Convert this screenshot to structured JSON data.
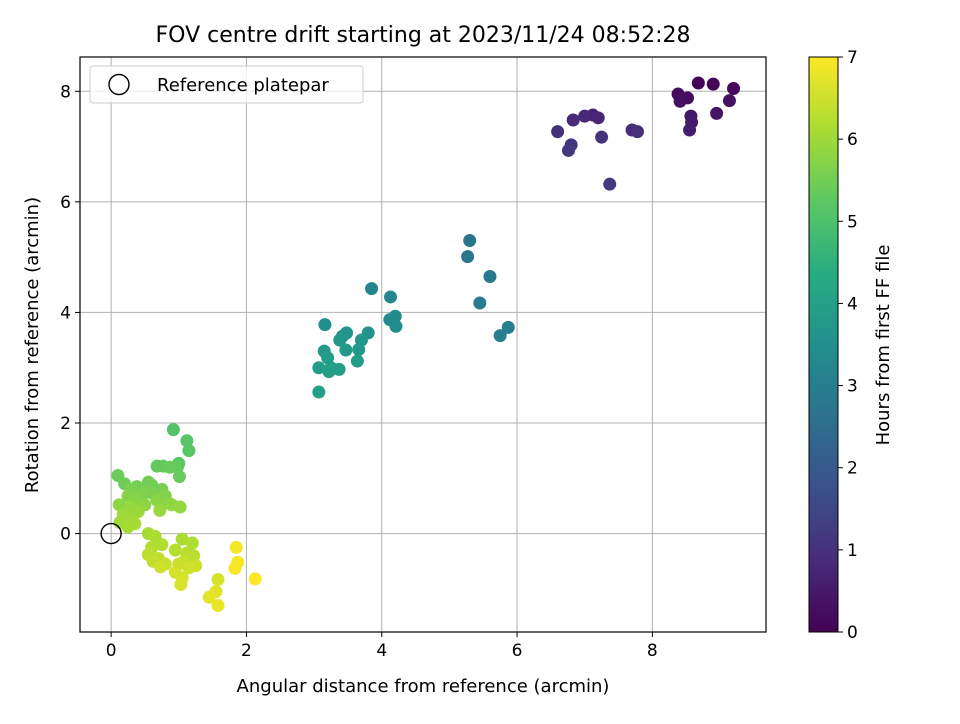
{
  "chart_data": {
    "type": "scatter",
    "title": "FOV centre drift starting at 2023/11/24 08:52:28",
    "xlabel": "Angular distance from reference (arcmin)",
    "ylabel": "Rotation from reference (arcmin)",
    "xlim": [
      -0.46,
      9.68
    ],
    "ylim": [
      -1.78,
      8.62
    ],
    "xticks": [
      0,
      2,
      4,
      6,
      8
    ],
    "yticks": [
      0,
      2,
      4,
      6,
      8
    ],
    "grid": true,
    "legend": {
      "placement": "top-left",
      "entries": [
        "Reference platepar"
      ]
    },
    "reference_point": {
      "x": 0,
      "y": 0,
      "label": "Reference platepar"
    },
    "colorbar": {
      "label": "Hours from first FF file",
      "range": [
        0,
        7
      ],
      "ticks": [
        0,
        1,
        2,
        3,
        4,
        5,
        6,
        7
      ],
      "colormap": "viridis"
    },
    "series": [
      {
        "points": [
          {
            "x": 8.68,
            "y": 8.15,
            "c": 0.05
          },
          {
            "x": 8.9,
            "y": 8.13,
            "c": 0.1
          },
          {
            "x": 9.2,
            "y": 8.05,
            "c": 0.15
          },
          {
            "x": 8.38,
            "y": 7.95,
            "c": 0.2
          },
          {
            "x": 8.52,
            "y": 7.88,
            "c": 0.25
          },
          {
            "x": 8.41,
            "y": 7.82,
            "c": 0.3
          },
          {
            "x": 9.14,
            "y": 7.83,
            "c": 0.35
          },
          {
            "x": 8.95,
            "y": 7.6,
            "c": 0.4
          },
          {
            "x": 8.57,
            "y": 7.55,
            "c": 0.45
          },
          {
            "x": 8.58,
            "y": 7.44,
            "c": 0.5
          },
          {
            "x": 8.55,
            "y": 7.3,
            "c": 0.55
          },
          {
            "x": 7.12,
            "y": 7.57,
            "c": 0.7
          },
          {
            "x": 7.2,
            "y": 7.52,
            "c": 0.75
          },
          {
            "x": 7.0,
            "y": 7.55,
            "c": 0.8
          },
          {
            "x": 6.83,
            "y": 7.48,
            "c": 0.85
          },
          {
            "x": 7.7,
            "y": 7.3,
            "c": 0.9
          },
          {
            "x": 7.78,
            "y": 7.27,
            "c": 0.95
          },
          {
            "x": 6.6,
            "y": 7.27,
            "c": 1.0
          },
          {
            "x": 7.25,
            "y": 7.17,
            "c": 1.05
          },
          {
            "x": 6.8,
            "y": 7.03,
            "c": 1.1
          },
          {
            "x": 6.76,
            "y": 6.93,
            "c": 1.15
          },
          {
            "x": 7.37,
            "y": 6.32,
            "c": 1.2
          },
          {
            "x": 5.3,
            "y": 5.3,
            "c": 2.75
          },
          {
            "x": 5.27,
            "y": 5.01,
            "c": 2.8
          },
          {
            "x": 5.6,
            "y": 4.65,
            "c": 2.85
          },
          {
            "x": 5.45,
            "y": 4.17,
            "c": 2.9
          },
          {
            "x": 5.87,
            "y": 3.73,
            "c": 2.95
          },
          {
            "x": 5.75,
            "y": 3.58,
            "c": 3.0
          },
          {
            "x": 3.85,
            "y": 4.43,
            "c": 3.2
          },
          {
            "x": 4.13,
            "y": 4.28,
            "c": 3.25
          },
          {
            "x": 4.2,
            "y": 3.93,
            "c": 3.3
          },
          {
            "x": 4.12,
            "y": 3.87,
            "c": 3.35
          },
          {
            "x": 4.21,
            "y": 3.75,
            "c": 3.4
          },
          {
            "x": 3.16,
            "y": 3.78,
            "c": 3.5
          },
          {
            "x": 3.8,
            "y": 3.63,
            "c": 3.55
          },
          {
            "x": 3.48,
            "y": 3.63,
            "c": 3.6
          },
          {
            "x": 3.42,
            "y": 3.57,
            "c": 3.65
          },
          {
            "x": 3.7,
            "y": 3.5,
            "c": 3.7
          },
          {
            "x": 3.38,
            "y": 3.5,
            "c": 3.72
          },
          {
            "x": 3.66,
            "y": 3.33,
            "c": 3.75
          },
          {
            "x": 3.47,
            "y": 3.32,
            "c": 3.78
          },
          {
            "x": 3.15,
            "y": 3.3,
            "c": 3.8
          },
          {
            "x": 3.2,
            "y": 3.18,
            "c": 3.82
          },
          {
            "x": 3.64,
            "y": 3.12,
            "c": 3.85
          },
          {
            "x": 3.07,
            "y": 3.0,
            "c": 3.88
          },
          {
            "x": 3.25,
            "y": 3.0,
            "c": 3.9
          },
          {
            "x": 3.37,
            "y": 2.97,
            "c": 3.92
          },
          {
            "x": 3.22,
            "y": 2.93,
            "c": 3.95
          },
          {
            "x": 3.07,
            "y": 2.56,
            "c": 3.98
          },
          {
            "x": 0.92,
            "y": 1.88,
            "c": 5.1
          },
          {
            "x": 1.12,
            "y": 1.68,
            "c": 5.15
          },
          {
            "x": 1.15,
            "y": 1.5,
            "c": 5.2
          },
          {
            "x": 1.0,
            "y": 1.27,
            "c": 5.25
          },
          {
            "x": 0.98,
            "y": 1.2,
            "c": 5.3
          },
          {
            "x": 0.68,
            "y": 1.22,
            "c": 5.32
          },
          {
            "x": 0.77,
            "y": 1.22,
            "c": 5.35
          },
          {
            "x": 0.87,
            "y": 1.2,
            "c": 5.38
          },
          {
            "x": 1.01,
            "y": 1.03,
            "c": 5.4
          },
          {
            "x": 0.1,
            "y": 1.05,
            "c": 5.42
          },
          {
            "x": 0.2,
            "y": 0.9,
            "c": 5.45
          },
          {
            "x": 0.55,
            "y": 0.93,
            "c": 5.48
          },
          {
            "x": 0.6,
            "y": 0.88,
            "c": 5.5
          },
          {
            "x": 0.38,
            "y": 0.85,
            "c": 5.52
          },
          {
            "x": 0.75,
            "y": 0.8,
            "c": 5.55
          },
          {
            "x": 0.3,
            "y": 0.8,
            "c": 5.58
          },
          {
            "x": 0.53,
            "y": 0.75,
            "c": 5.6
          },
          {
            "x": 0.62,
            "y": 0.72,
            "c": 5.62
          },
          {
            "x": 0.45,
            "y": 0.7,
            "c": 5.65
          },
          {
            "x": 0.8,
            "y": 0.68,
            "c": 5.68
          },
          {
            "x": 0.25,
            "y": 0.68,
            "c": 5.7
          },
          {
            "x": 0.35,
            "y": 0.62,
            "c": 5.72
          },
          {
            "x": 0.68,
            "y": 0.6,
            "c": 5.75
          },
          {
            "x": 0.85,
            "y": 0.55,
            "c": 5.78
          },
          {
            "x": 0.12,
            "y": 0.52,
            "c": 5.8
          },
          {
            "x": 0.5,
            "y": 0.52,
            "c": 5.82
          },
          {
            "x": 0.9,
            "y": 0.52,
            "c": 5.85
          },
          {
            "x": 1.02,
            "y": 0.48,
            "c": 5.88
          },
          {
            "x": 0.28,
            "y": 0.48,
            "c": 5.9
          },
          {
            "x": 0.72,
            "y": 0.42,
            "c": 5.92
          },
          {
            "x": 0.4,
            "y": 0.4,
            "c": 5.95
          },
          {
            "x": 0.18,
            "y": 0.35,
            "c": 5.98
          },
          {
            "x": 0.3,
            "y": 0.25,
            "c": 6.0
          },
          {
            "x": 0.13,
            "y": 0.2,
            "c": 6.02
          },
          {
            "x": 0.35,
            "y": 0.18,
            "c": 6.05
          },
          {
            "x": 0.25,
            "y": 0.12,
            "c": 6.08
          },
          {
            "x": 0.55,
            "y": 0.0,
            "c": 6.1
          },
          {
            "x": 0.65,
            "y": -0.05,
            "c": 6.12
          },
          {
            "x": 1.05,
            "y": -0.1,
            "c": 6.15
          },
          {
            "x": 1.2,
            "y": -0.17,
            "c": 6.18
          },
          {
            "x": 0.75,
            "y": -0.2,
            "c": 6.2
          },
          {
            "x": 0.6,
            "y": -0.25,
            "c": 6.22
          },
          {
            "x": 0.95,
            "y": -0.3,
            "c": 6.25
          },
          {
            "x": 1.12,
            "y": -0.35,
            "c": 6.28
          },
          {
            "x": 0.55,
            "y": -0.38,
            "c": 6.3
          },
          {
            "x": 1.22,
            "y": -0.4,
            "c": 6.32
          },
          {
            "x": 0.7,
            "y": -0.45,
            "c": 6.35
          },
          {
            "x": 0.62,
            "y": -0.5,
            "c": 6.38
          },
          {
            "x": 1.08,
            "y": -0.5,
            "c": 6.4
          },
          {
            "x": 0.8,
            "y": -0.55,
            "c": 6.42
          },
          {
            "x": 1.0,
            "y": -0.55,
            "c": 6.45
          },
          {
            "x": 1.25,
            "y": -0.58,
            "c": 6.48
          },
          {
            "x": 0.73,
            "y": -0.6,
            "c": 6.5
          },
          {
            "x": 1.15,
            "y": -0.62,
            "c": 6.52
          },
          {
            "x": 0.95,
            "y": -0.7,
            "c": 6.55
          },
          {
            "x": 1.05,
            "y": -0.8,
            "c": 6.58
          },
          {
            "x": 1.58,
            "y": -0.83,
            "c": 6.6
          },
          {
            "x": 1.03,
            "y": -0.92,
            "c": 6.62
          },
          {
            "x": 1.55,
            "y": -1.05,
            "c": 6.7
          },
          {
            "x": 1.45,
            "y": -1.15,
            "c": 6.75
          },
          {
            "x": 1.58,
            "y": -1.3,
            "c": 6.8
          },
          {
            "x": 1.85,
            "y": -0.25,
            "c": 6.9
          },
          {
            "x": 1.87,
            "y": -0.52,
            "c": 6.92
          },
          {
            "x": 1.83,
            "y": -0.63,
            "c": 6.95
          },
          {
            "x": 2.13,
            "y": -0.82,
            "c": 7.0
          }
        ]
      }
    ]
  }
}
